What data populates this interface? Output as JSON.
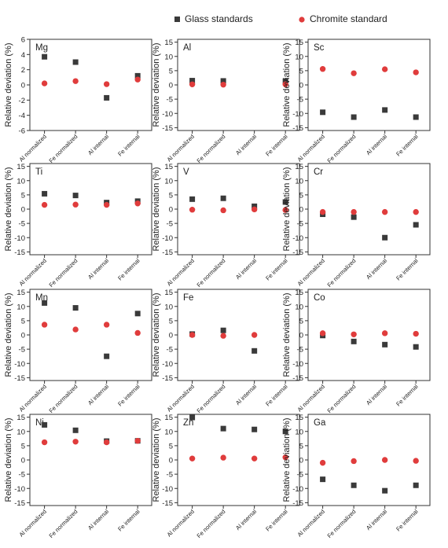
{
  "legend": {
    "glass_label": "Glass standards",
    "chromite_label": "Chromite standard",
    "glass_color": "#3a3a3a",
    "chromite_color": "#e03c3c"
  },
  "chart_data": [
    {
      "type": "scatter",
      "title": "Mg",
      "ylabel": "Relative deviation (%)",
      "ylim": [
        -6,
        6
      ],
      "yticks": [
        -6,
        -4,
        -2,
        0,
        2,
        4,
        6
      ],
      "categories": [
        "Al normalized",
        "Fe normalized",
        "Al internal",
        "Fe internal"
      ],
      "series": [
        {
          "name": "Glass standards",
          "values": [
            3.7,
            3.0,
            -1.7,
            1.2
          ]
        },
        {
          "name": "Chromite standard",
          "values": [
            0.2,
            0.5,
            0.1,
            0.7
          ]
        }
      ]
    },
    {
      "type": "scatter",
      "title": "Al",
      "ylabel": "Relative deviation (%)",
      "ylim": [
        -16,
        16
      ],
      "yticks": [
        -15,
        -10,
        -5,
        0,
        5,
        10,
        15
      ],
      "categories": [
        "Al normalized",
        "Fe normalized",
        "Al internal",
        "Fe internal"
      ],
      "series": [
        {
          "name": "Glass standards",
          "values": [
            1.5,
            1.4,
            null,
            1.3
          ]
        },
        {
          "name": "Chromite standard",
          "values": [
            0.2,
            0.1,
            null,
            0.2
          ]
        }
      ]
    },
    {
      "type": "scatter",
      "title": "Sc",
      "ylabel": "Relative deviation (%)",
      "ylim": [
        -16,
        16
      ],
      "yticks": [
        -15,
        -10,
        -5,
        0,
        5,
        10,
        15
      ],
      "categories": [
        "Al normalized",
        "Fe normalized",
        "Al internal",
        "Fe internal"
      ],
      "series": [
        {
          "name": "Glass standards",
          "values": [
            -9.6,
            -11.3,
            -8.8,
            -11.3
          ]
        },
        {
          "name": "Chromite standard",
          "values": [
            5.6,
            4.1,
            5.5,
            4.4
          ]
        }
      ]
    },
    {
      "type": "scatter",
      "title": "Ti",
      "ylabel": "Relative deviation (%)",
      "ylim": [
        -16,
        16
      ],
      "yticks": [
        -15,
        -10,
        -5,
        0,
        5,
        10,
        15
      ],
      "categories": [
        "Al normalized",
        "Fe normalized",
        "Al internal",
        "Fe internal"
      ],
      "series": [
        {
          "name": "Glass standards",
          "values": [
            5.4,
            4.8,
            2.3,
            2.8
          ]
        },
        {
          "name": "Chromite standard",
          "values": [
            1.5,
            1.6,
            1.5,
            2.0
          ]
        }
      ]
    },
    {
      "type": "scatter",
      "title": "V",
      "ylabel": "Relative deviation (%)",
      "ylim": [
        -16,
        16
      ],
      "yticks": [
        -15,
        -10,
        -5,
        0,
        5,
        10,
        15
      ],
      "categories": [
        "Al normalized",
        "Fe normalized",
        "Al internal",
        "Fe internal"
      ],
      "series": [
        {
          "name": "Glass standards",
          "values": [
            3.5,
            3.8,
            1.0,
            2.5
          ]
        },
        {
          "name": "Chromite standard",
          "values": [
            -0.2,
            -0.4,
            -0.1,
            -0.3
          ]
        }
      ]
    },
    {
      "type": "scatter",
      "title": "Cr",
      "ylabel": "Relative deviation (%)",
      "ylim": [
        -16,
        16
      ],
      "yticks": [
        -15,
        -10,
        -5,
        0,
        5,
        10,
        15
      ],
      "categories": [
        "Al normalized",
        "Fe normalized",
        "Al internal",
        "Fe internal"
      ],
      "series": [
        {
          "name": "Glass standards",
          "values": [
            -1.8,
            -2.8,
            -10.0,
            -5.5
          ]
        },
        {
          "name": "Chromite standard",
          "values": [
            -1.0,
            -1.0,
            -1.0,
            -1.0
          ]
        }
      ]
    },
    {
      "type": "scatter",
      "title": "Mn",
      "ylabel": "Relative deviation (%)",
      "ylim": [
        -16,
        16
      ],
      "yticks": [
        -15,
        -10,
        -5,
        0,
        5,
        10,
        15
      ],
      "categories": [
        "Al normalized",
        "Fe normalized",
        "Al internal",
        "Fe internal"
      ],
      "series": [
        {
          "name": "Glass standards",
          "values": [
            11.2,
            9.5,
            -7.5,
            7.5
          ]
        },
        {
          "name": "Chromite standard",
          "values": [
            3.6,
            1.9,
            3.6,
            0.7
          ]
        }
      ]
    },
    {
      "type": "scatter",
      "title": "Fe",
      "ylabel": "Relative deviation (%)",
      "ylim": [
        -16,
        16
      ],
      "yticks": [
        -15,
        -10,
        -5,
        0,
        5,
        10,
        15
      ],
      "categories": [
        "Al normalized",
        "Fe normalized",
        "Al internal",
        "Fe internal"
      ],
      "series": [
        {
          "name": "Glass standards",
          "values": [
            0.3,
            1.6,
            -5.6,
            null
          ]
        },
        {
          "name": "Chromite standard",
          "values": [
            0.0,
            -0.3,
            0.0,
            null
          ]
        }
      ]
    },
    {
      "type": "scatter",
      "title": "Co",
      "ylabel": "Relative deviation (%)",
      "ylim": [
        -16,
        16
      ],
      "yticks": [
        -15,
        -10,
        -5,
        0,
        5,
        10,
        15
      ],
      "categories": [
        "Al normalized",
        "Fe normalized",
        "Al internal",
        "Fe internal"
      ],
      "series": [
        {
          "name": "Glass standards",
          "values": [
            -0.2,
            -2.3,
            -3.4,
            -4.2
          ]
        },
        {
          "name": "Chromite standard",
          "values": [
            0.6,
            0.2,
            0.6,
            0.4
          ]
        }
      ]
    },
    {
      "type": "scatter",
      "title": "Ni",
      "ylabel": "Relative deviation (%)",
      "ylim": [
        -16,
        16
      ],
      "yticks": [
        -15,
        -10,
        -5,
        0,
        5,
        10,
        15
      ],
      "categories": [
        "Al normalized",
        "Fe normalized",
        "Al internal",
        "Fe internal"
      ],
      "series": [
        {
          "name": "Glass standards",
          "values": [
            12.3,
            10.4,
            6.6,
            6.7
          ]
        },
        {
          "name": "Chromite standard",
          "values": [
            6.2,
            6.4,
            6.2,
            6.7
          ]
        }
      ]
    },
    {
      "type": "scatter",
      "title": "Zn",
      "ylabel": "Relative deviation (%)",
      "ylim": [
        -16,
        16
      ],
      "yticks": [
        -15,
        -10,
        -5,
        0,
        5,
        10,
        15
      ],
      "categories": [
        "Al normalized",
        "Fe normalized",
        "Al internal",
        "Fe internal"
      ],
      "series": [
        {
          "name": "Glass standards",
          "values": [
            14.9,
            11.0,
            10.7,
            10.0
          ]
        },
        {
          "name": "Chromite standard",
          "values": [
            0.5,
            0.8,
            0.5,
            0.9
          ]
        }
      ]
    },
    {
      "type": "scatter",
      "title": "Ga",
      "ylabel": "Relative deviation (%)",
      "ylim": [
        -16,
        16
      ],
      "yticks": [
        -15,
        -10,
        -5,
        0,
        5,
        10,
        15
      ],
      "categories": [
        "Al normalized",
        "Fe normalized",
        "Al internal",
        "Fe internal"
      ],
      "series": [
        {
          "name": "Glass standards",
          "values": [
            -6.8,
            -8.9,
            -10.8,
            -8.9
          ]
        },
        {
          "name": "Chromite standard",
          "values": [
            -1.0,
            -0.4,
            0.0,
            -0.3
          ]
        }
      ]
    }
  ]
}
